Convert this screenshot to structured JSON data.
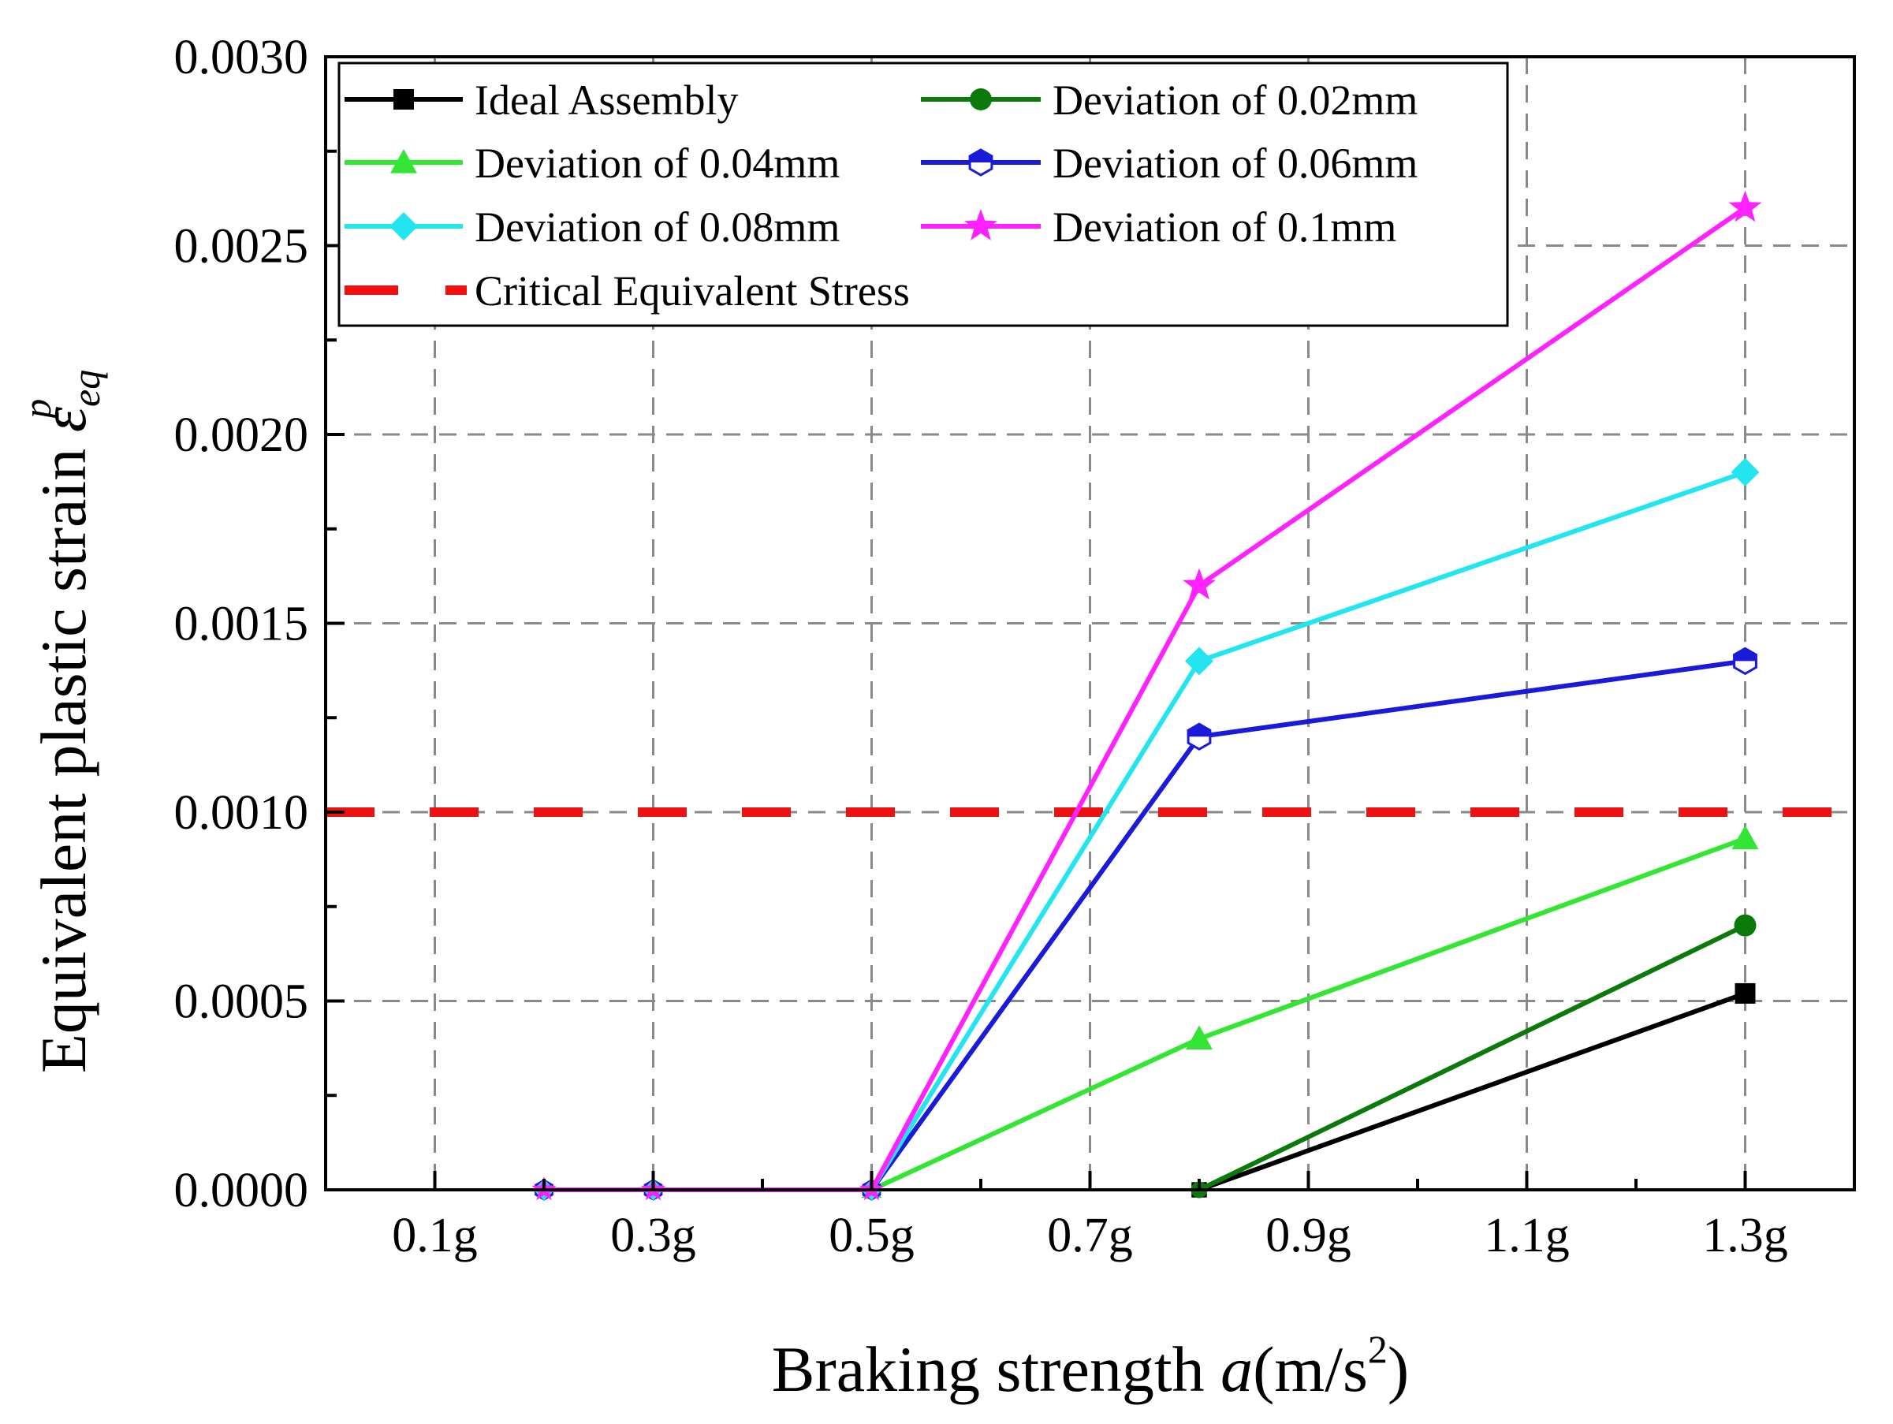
{
  "chart_data": {
    "type": "line",
    "title": "",
    "xlabel": {
      "prefix": "Braking strength ",
      "var": "a",
      "unit_open": "(m/s",
      "unit_sup": "2",
      "unit_close": ")"
    },
    "ylabel": {
      "prefix": "Equivalent plastic strain ",
      "symbol": "ε",
      "sub": "eq",
      "sup": "p"
    },
    "xlim": [
      0.0,
      1.4
    ],
    "ylim": [
      0.0,
      0.003
    ],
    "x_ticks": [
      {
        "value": 0.1,
        "label": "0.1g"
      },
      {
        "value": 0.3,
        "label": "0.3g"
      },
      {
        "value": 0.5,
        "label": "0.5g"
      },
      {
        "value": 0.7,
        "label": "0.7g"
      },
      {
        "value": 0.9,
        "label": "0.9g"
      },
      {
        "value": 1.1,
        "label": "1.1g"
      },
      {
        "value": 1.3,
        "label": "1.3g"
      }
    ],
    "y_ticks": [
      {
        "value": 0.0,
        "label": "0.0000"
      },
      {
        "value": 0.0005,
        "label": "0.0005"
      },
      {
        "value": 0.001,
        "label": "0.0010"
      },
      {
        "value": 0.0015,
        "label": "0.0015"
      },
      {
        "value": 0.002,
        "label": "0.0020"
      },
      {
        "value": 0.0025,
        "label": "0.0025"
      },
      {
        "value": 0.003,
        "label": "0.0030"
      }
    ],
    "grid": true,
    "legend_position": "top-left",
    "series": [
      {
        "name": "Ideal Assembly",
        "color": "#000000",
        "marker": "square",
        "x": [
          0.8,
          1.3
        ],
        "y": [
          0.0,
          0.00052
        ]
      },
      {
        "name": "Deviation of 0.02mm",
        "color": "#0b7a0b",
        "marker": "circle",
        "x": [
          0.8,
          1.3
        ],
        "y": [
          0.0,
          0.0007
        ]
      },
      {
        "name": "Deviation of 0.04mm",
        "color": "#33e633",
        "marker": "triangle",
        "x": [
          0.5,
          0.8,
          1.3
        ],
        "y": [
          0.0,
          0.0004,
          0.00093
        ]
      },
      {
        "name": "Deviation of 0.06mm",
        "color": "#1a1adb",
        "marker": "half-hexagon",
        "x": [
          0.2,
          0.3,
          0.5,
          0.8,
          1.3
        ],
        "y": [
          0.0,
          0.0,
          0.0,
          0.0012,
          0.0014
        ]
      },
      {
        "name": "Deviation of 0.08mm",
        "color": "#22e5f0",
        "marker": "diamond",
        "x": [
          0.2,
          0.3,
          0.5,
          0.8,
          1.3
        ],
        "y": [
          0.0,
          0.0,
          0.0,
          0.0014,
          0.0019
        ]
      },
      {
        "name": "Deviation of 0.1mm",
        "color": "#ff22ff",
        "marker": "star",
        "x": [
          0.2,
          0.3,
          0.5,
          0.8,
          1.3
        ],
        "y": [
          0.0,
          0.0,
          0.0,
          0.0016,
          0.0026
        ]
      }
    ],
    "reference_line": {
      "name": "Critical Equivalent Stress",
      "color": "#ee1111",
      "y": 0.001,
      "style": "dashed"
    }
  }
}
